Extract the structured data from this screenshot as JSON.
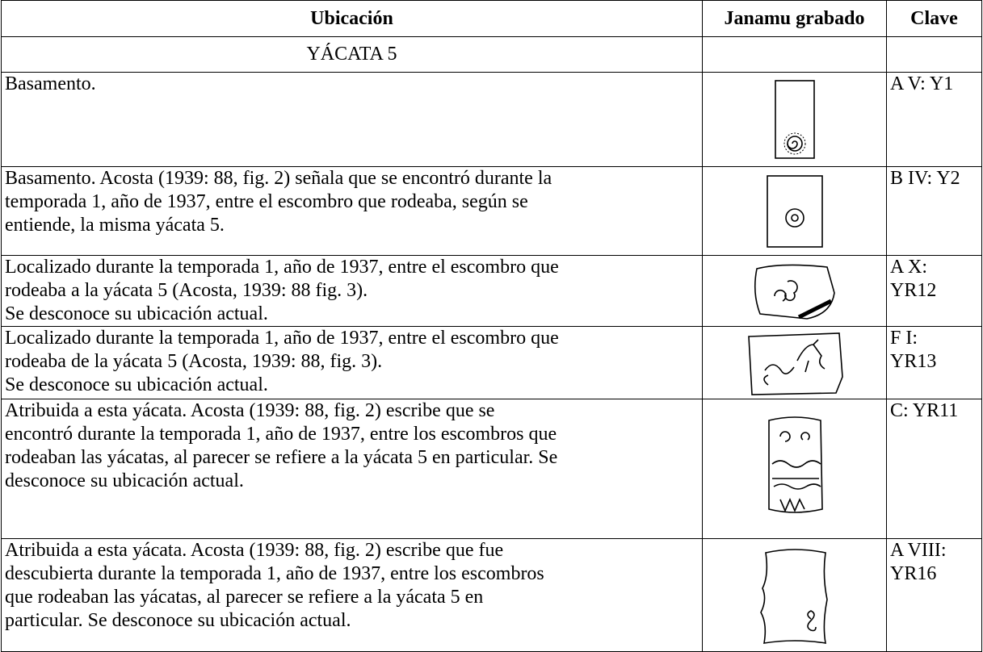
{
  "table": {
    "header": [
      "Ubicación",
      "Janamu grabado",
      "Clave"
    ],
    "section": "YÁCATA 5",
    "rows": [
      {
        "ubicacion": [
          "Basamento."
        ],
        "clave": [
          "A V: Y1"
        ]
      },
      {
        "ubicacion": [
          "Basamento.  Acosta (1939: 88, fig. 2) señala que se encontró durante la",
          "temporada 1, año de 1937, entre el escombro que rodeaba, según se",
          "entiende, la misma yácata 5."
        ],
        "clave": [
          "B IV: Y2"
        ]
      },
      {
        "ubicacion": [
          "Localizado durante la temporada 1, año de 1937, entre el escombro que",
          "rodeaba a la yácata 5 (Acosta, 1939: 88 fig. 3).",
          "Se desconoce su ubicación actual."
        ],
        "clave": [
          "A X:",
          "YR12"
        ]
      },
      {
        "ubicacion": [
          "Localizado durante la temporada 1, año de 1937, entre el escombro que",
          "rodeaba de la yácata 5 (Acosta, 1939: 88, fig. 3).",
          "Se desconoce su ubicación actual."
        ],
        "clave": [
          "F I:",
          "YR13"
        ]
      },
      {
        "ubicacion": [
          "Atribuida a esta yácata. Acosta (1939: 88, fig. 2) escribe que se",
          "encontró durante la temporada 1, año de 1937, entre los escombros que",
          "rodeaban las yácatas, al parecer se refiere a la yácata 5 en particular. Se",
          "desconoce su ubicación actual."
        ],
        "clave": [
          "C: YR11"
        ]
      },
      {
        "ubicacion": [
          "Atribuida a esta yácata. Acosta (1939: 88, fig. 2) escribe que fue",
          "descubierta durante la temporada 1, año de 1937, entre los escombros",
          "que rodeaban las yácatas, al parecer se refiere a la yácata 5 en",
          "particular. Se desconoce su ubicación actual."
        ],
        "clave": [
          "A VIII:",
          "YR16"
        ]
      }
    ]
  }
}
